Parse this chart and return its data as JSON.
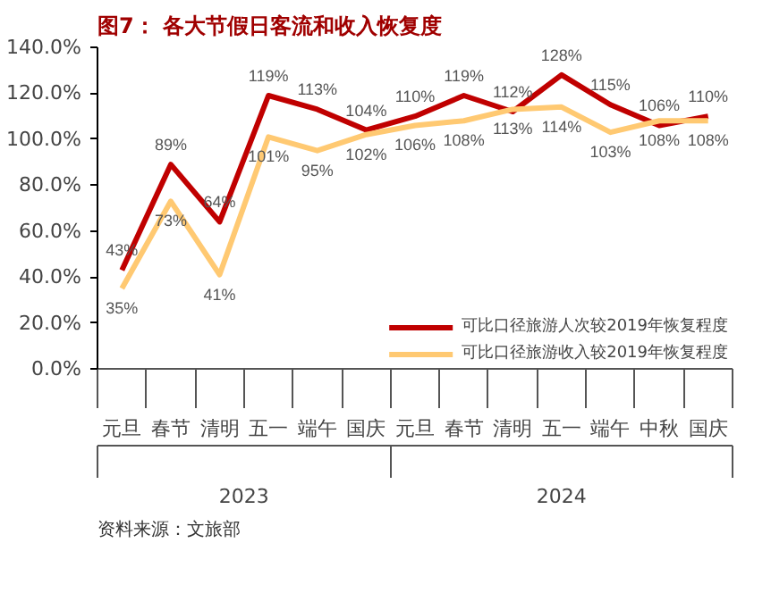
{
  "chart_data": {
    "type": "line",
    "title": "图7：  各大节假日客流和收入恢复度",
    "categories": [
      "元旦",
      "春节",
      "清明",
      "五一",
      "端午",
      "国庆",
      "元旦",
      "春节",
      "清明",
      "五一",
      "端午",
      "中秋",
      "国庆"
    ],
    "series": [
      {
        "name": "可比口径旅游人次较2019年恢复程度",
        "color": "#c00000",
        "values": [
          43,
          89,
          64,
          119,
          113,
          104,
          110,
          119,
          112,
          128,
          115,
          106,
          110
        ],
        "value_labels": [
          "43%",
          "89%",
          "64%",
          "119%",
          "113%",
          "104%",
          "110%",
          "119%",
          "112%",
          "128%",
          "115%",
          "106%",
          "110%"
        ]
      },
      {
        "name": "可比口径旅游收入较2019年恢复程度",
        "color": "#ffc972",
        "values": [
          35,
          73,
          41,
          101,
          95,
          102,
          106,
          108,
          113,
          114,
          103,
          108,
          108
        ],
        "value_labels": [
          "35%",
          "73%",
          "41%",
          "101%",
          "95%",
          "102%",
          "106%",
          "108%",
          "113%",
          "114%",
          "103%",
          "108%",
          "108%"
        ]
      }
    ],
    "ylim": [
      0,
      140
    ],
    "yticks": [
      {
        "value": 0,
        "label": "0.0%"
      },
      {
        "value": 20,
        "label": "20.0%"
      },
      {
        "value": 40,
        "label": "40.0%"
      },
      {
        "value": 60,
        "label": "60.0%"
      },
      {
        "value": 80,
        "label": "80.0%"
      },
      {
        "value": 100,
        "label": "100.0%"
      },
      {
        "value": 120,
        "label": "120.0%"
      },
      {
        "value": 140,
        "label": "140.0%"
      }
    ],
    "grid": false,
    "legend": "bottom right",
    "marker": "none",
    "line_style": "solid",
    "annotations": [
      "2023",
      "2024",
      "资料来源：文旅部"
    ]
  }
}
